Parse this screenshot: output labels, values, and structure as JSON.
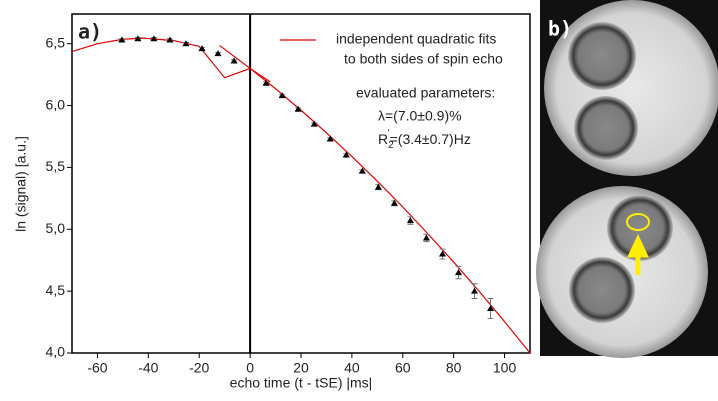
{
  "chart_data": {
    "type": "scatter",
    "panel_label": "a)",
    "image_panel_label": "b)",
    "x_label": "echo time (t - tSE) |ms|",
    "y_label": "ln (signal) [a.u.]",
    "xlim": [
      -70,
      110
    ],
    "ylim": [
      4.0,
      6.74
    ],
    "xticks": [
      -60,
      -40,
      -20,
      0,
      20,
      40,
      60,
      80,
      100
    ],
    "yticks": [
      {
        "value": 4.0,
        "label": "4,0"
      },
      {
        "value": 4.5,
        "label": "4,5"
      },
      {
        "value": 5.0,
        "label": "5,0"
      },
      {
        "value": 5.5,
        "label": "5,5"
      },
      {
        "value": 6.0,
        "label": "6,0"
      },
      {
        "value": 6.5,
        "label": "6,5"
      }
    ],
    "vline_x": 0,
    "series": [
      {
        "color": "#000000",
        "x": [
          -50.4,
          -44.1,
          -37.8,
          -31.5,
          -25.2,
          -18.9,
          -12.6,
          -6.3,
          6.3,
          12.6,
          18.9,
          25.2,
          31.5,
          37.8,
          44.1,
          50.4,
          56.7,
          63.0,
          69.3,
          75.6,
          81.9,
          88.2,
          94.5
        ],
        "values": [
          6.53,
          6.54,
          6.54,
          6.53,
          6.5,
          6.46,
          6.42,
          6.36,
          6.18,
          6.08,
          5.97,
          5.85,
          5.73,
          5.6,
          5.47,
          5.34,
          5.21,
          5.07,
          4.93,
          4.8,
          4.65,
          4.5,
          4.36
        ],
        "errors": [
          0.01,
          0.01,
          0.01,
          0.01,
          0.01,
          0.01,
          0.01,
          0.01,
          0.01,
          0.01,
          0.01,
          0.01,
          0.01,
          0.01,
          0.01,
          0.02,
          0.02,
          0.03,
          0.03,
          0.04,
          0.05,
          0.06,
          0.08
        ]
      }
    ],
    "fits": {
      "color": "#e00000",
      "legend_lines": [
        "independent quadratic fits",
        "to both sides of spin echo"
      ],
      "curves": [
        {
          "x": [
            -70,
            -60,
            -50,
            -42,
            -30,
            -20,
            -10,
            0,
            8
          ],
          "values": [
            6.436,
            6.5,
            6.536,
            6.545,
            6.525,
            6.478,
            6.225,
            6.3,
            6.19
          ]
        },
        {
          "x": [
            -12,
            0,
            10,
            20,
            30,
            40,
            50,
            60,
            70,
            80,
            90,
            100,
            110
          ],
          "values": [
            6.486,
            6.3,
            6.136,
            5.962,
            5.78,
            5.589,
            5.389,
            5.18,
            4.961,
            4.735,
            4.499,
            4.254,
            4.0
          ]
        }
      ]
    },
    "annotations": {
      "heading": "evaluated parameters:",
      "lambda": "λ=(7.0±0.9)%",
      "r2": {
        "symbol": "R",
        "sub": "2",
        "sup": "'",
        "rest": "=(3.4±0.7)Hz"
      }
    }
  }
}
